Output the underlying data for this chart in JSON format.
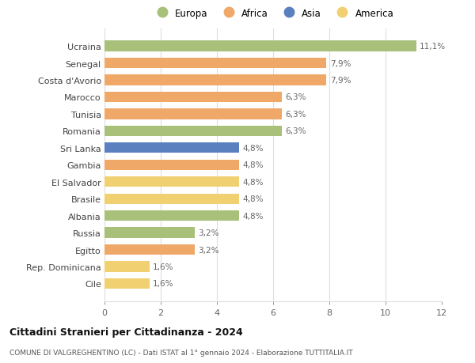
{
  "countries": [
    "Ucraina",
    "Senegal",
    "Costa d'Avorio",
    "Marocco",
    "Tunisia",
    "Romania",
    "Sri Lanka",
    "Gambia",
    "El Salvador",
    "Brasile",
    "Albania",
    "Russia",
    "Egitto",
    "Rep. Dominicana",
    "Cile"
  ],
  "values": [
    11.1,
    7.9,
    7.9,
    6.3,
    6.3,
    6.3,
    4.8,
    4.8,
    4.8,
    4.8,
    4.8,
    3.2,
    3.2,
    1.6,
    1.6
  ],
  "labels": [
    "11,1%",
    "7,9%",
    "7,9%",
    "6,3%",
    "6,3%",
    "6,3%",
    "4,8%",
    "4,8%",
    "4,8%",
    "4,8%",
    "4,8%",
    "3,2%",
    "3,2%",
    "1,6%",
    "1,6%"
  ],
  "categories": [
    "Europa",
    "Africa",
    "Africa",
    "Africa",
    "Africa",
    "Europa",
    "Asia",
    "Africa",
    "America",
    "America",
    "Europa",
    "Europa",
    "Africa",
    "America",
    "America"
  ],
  "colors": {
    "Europa": "#a8c07a",
    "Africa": "#f0a868",
    "Asia": "#5b80c0",
    "America": "#f0d070"
  },
  "legend_order": [
    "Europa",
    "Africa",
    "Asia",
    "America"
  ],
  "title": "Cittadini Stranieri per Cittadinanza - 2024",
  "subtitle": "COMUNE DI VALGREGHENTINO (LC) - Dati ISTAT al 1° gennaio 2024 - Elaborazione TUTTITALIA.IT",
  "xlim": [
    0,
    12
  ],
  "xticks": [
    0,
    2,
    4,
    6,
    8,
    10,
    12
  ],
  "bg_color": "#ffffff",
  "grid_color": "#dddddd",
  "label_color": "#666666",
  "ytick_color": "#444444"
}
